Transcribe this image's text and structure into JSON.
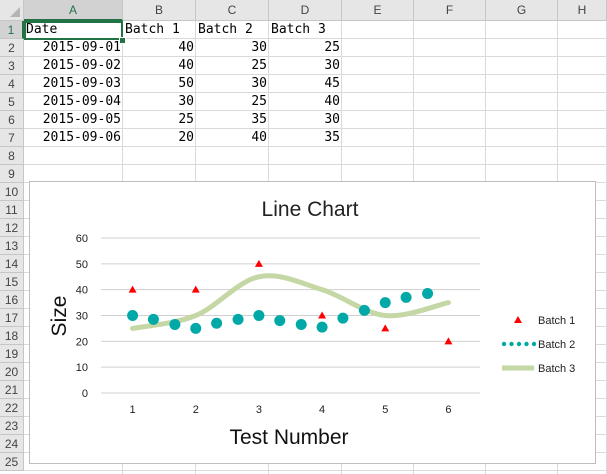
{
  "columns": [
    "A",
    "B",
    "C",
    "D",
    "E",
    "F",
    "G",
    "H"
  ],
  "selected_column": "A",
  "rows": [
    "1",
    "2",
    "3",
    "4",
    "5",
    "6",
    "7",
    "8",
    "9",
    "10",
    "11",
    "12",
    "13",
    "14",
    "15",
    "16",
    "17",
    "18",
    "19",
    "20",
    "21",
    "22",
    "23",
    "24",
    "25"
  ],
  "selected_row": "1",
  "table": {
    "header": [
      "Date",
      "Batch 1",
      "Batch 2",
      "Batch 3"
    ],
    "data": [
      [
        "2015-09-01",
        "40",
        "30",
        "25"
      ],
      [
        "2015-09-02",
        "40",
        "25",
        "30"
      ],
      [
        "2015-09-03",
        "50",
        "30",
        "45"
      ],
      [
        "2015-09-04",
        "30",
        "25",
        "40"
      ],
      [
        "2015-09-05",
        "25",
        "35",
        "30"
      ],
      [
        "2015-09-06",
        "20",
        "40",
        "35"
      ]
    ]
  },
  "chart_data": {
    "type": "line",
    "title": "Line Chart",
    "xlabel": "Test Number",
    "ylabel": "Size",
    "xticks": [
      "1",
      "2",
      "3",
      "4",
      "5",
      "6"
    ],
    "yticks": [
      "0",
      "10",
      "20",
      "30",
      "40",
      "50",
      "60"
    ],
    "ylim": [
      0,
      60
    ],
    "xlim": [
      0.5,
      6.5
    ],
    "grid": true,
    "legend_position": "right",
    "series": [
      {
        "name": "Batch 1",
        "marker": "triangle",
        "color": "#ff0000",
        "x": [
          1,
          2,
          3,
          4,
          5,
          6
        ],
        "y": [
          40,
          40,
          50,
          30,
          25,
          20
        ]
      },
      {
        "name": "Batch 2",
        "marker": "dots",
        "color": "#00a8a8",
        "x": [
          1,
          1.33,
          1.67,
          2,
          2.33,
          2.67,
          3,
          3.33,
          3.67,
          4,
          4.33,
          4.67,
          5,
          5.33,
          5.67
        ],
        "y": [
          30,
          28.5,
          26.5,
          25,
          27,
          28.5,
          30,
          28,
          26.5,
          25.5,
          29,
          32,
          35,
          37,
          38.5
        ]
      },
      {
        "name": "Batch 3",
        "marker": "smooth-line",
        "color": "#c4d7a4",
        "x": [
          1,
          2,
          3,
          4,
          5,
          6
        ],
        "y": [
          25,
          30,
          45,
          40,
          30,
          35
        ]
      }
    ]
  }
}
